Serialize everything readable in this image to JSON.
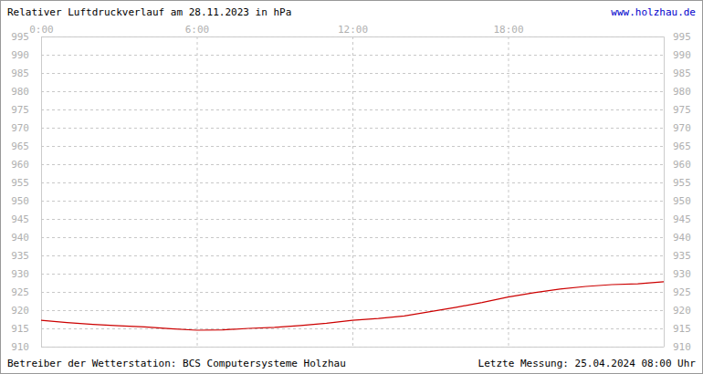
{
  "chart_data": {
    "type": "line",
    "title": "Relativer Luftdruckverlauf am 28.11.2023 in hPa",
    "url": "www.holzhau.de",
    "source": "Betreiber der Wetterstation: BCS Computersysteme Holzhau",
    "note": "Letzte Messung: 25.04.2024 08:00 Uhr",
    "x": [
      0,
      1,
      2,
      3,
      4,
      5,
      6,
      7,
      8,
      9,
      10,
      11,
      12,
      13,
      14,
      15,
      16,
      17,
      18,
      19,
      20,
      21,
      22,
      23,
      24
    ],
    "series": [
      {
        "name": "Luftdruck",
        "color": "#cc0000",
        "values": [
          917.2,
          916.6,
          916.1,
          915.7,
          915.4,
          914.9,
          914.5,
          914.6,
          915.0,
          915.3,
          915.8,
          916.4,
          917.2,
          917.7,
          918.4,
          919.6,
          920.8,
          922.1,
          923.6,
          924.8,
          925.8,
          926.5,
          927.0,
          927.2,
          927.8
        ]
      }
    ],
    "xlim": [
      0,
      24
    ],
    "xticks": [
      {
        "value": 0,
        "label": "0:00"
      },
      {
        "value": 6,
        "label": "6:00"
      },
      {
        "value": 12,
        "label": "12:00"
      },
      {
        "value": 18,
        "label": "18:00"
      }
    ],
    "ylim": [
      910,
      995
    ],
    "yticks": [
      910,
      915,
      920,
      925,
      930,
      935,
      940,
      945,
      950,
      955,
      960,
      965,
      970,
      975,
      980,
      985,
      990,
      995
    ],
    "grid": true
  }
}
